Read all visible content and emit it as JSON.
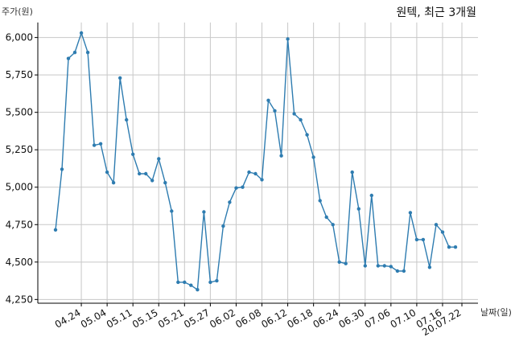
{
  "chart_data": {
    "type": "line",
    "title": "원텍, 최근 3개월",
    "xlabel": "날짜(일)",
    "ylabel": "주가(원)",
    "ylim": [
      4225,
      6100
    ],
    "yticks": [
      4250,
      4500,
      4750,
      5000,
      5250,
      5500,
      5750,
      6000
    ],
    "ytick_labels": [
      "4,250",
      "4,500",
      "4,750",
      "5,000",
      "5,250",
      "5,500",
      "5,750",
      "6,000"
    ],
    "xtick_labels": [
      "04.24",
      "05.04",
      "05.11",
      "05.15",
      "05.21",
      "05.27",
      "06.02",
      "06.08",
      "06.12",
      "06.18",
      "06.24",
      "06.30",
      "07.06",
      "07.10",
      "07.16",
      "20.07.22"
    ],
    "xtick_index": [
      4,
      8,
      12,
      16,
      20,
      24,
      28,
      32,
      36,
      40,
      44,
      48,
      52,
      56,
      60,
      63
    ],
    "grid": true,
    "series": [
      {
        "values": [
          4715,
          5120,
          5860,
          5900,
          6030,
          5900,
          5280,
          5290,
          5100,
          5030,
          5730,
          5450,
          5220,
          5090,
          5090,
          5045,
          5190,
          5030,
          4840,
          4365,
          4365,
          4345,
          4315,
          4835,
          4365,
          4375,
          4740,
          4900,
          4995,
          5000,
          5100,
          5090,
          5050,
          5580,
          5510,
          5210,
          5990,
          5490,
          5450,
          5350,
          5200,
          4910,
          4800,
          4750,
          4500,
          4490,
          5100,
          4855,
          4475,
          4945,
          4475,
          4475,
          4470,
          4440,
          4440,
          4830,
          4650,
          4650,
          4465,
          4750,
          4700,
          4600,
          4600
        ]
      }
    ]
  }
}
